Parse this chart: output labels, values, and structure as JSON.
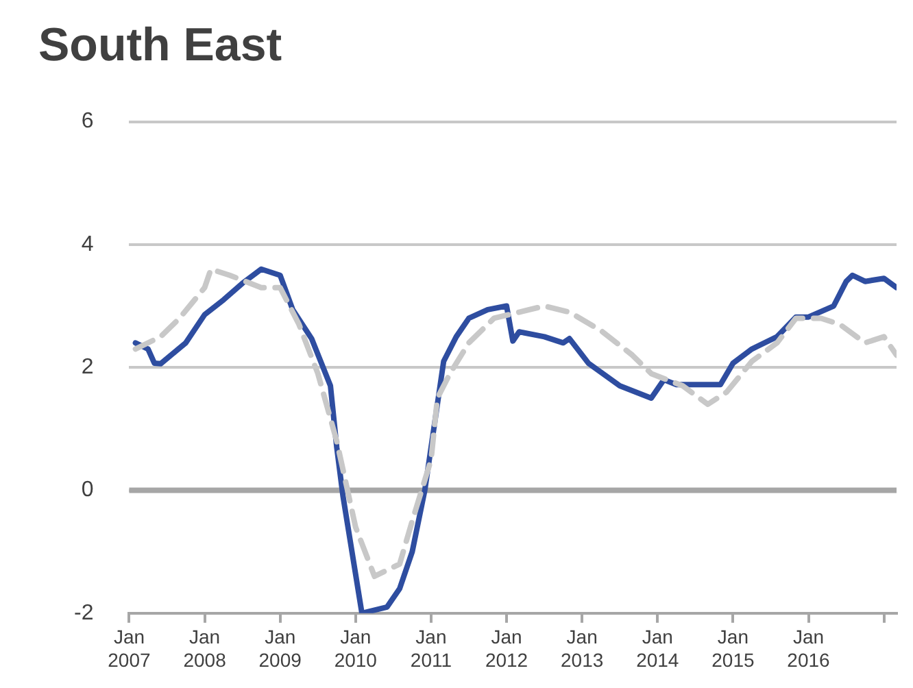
{
  "chart_data": {
    "type": "line",
    "title": "South East",
    "xlim": [
      "2007-01",
      "2017-03"
    ],
    "xticks": [
      {
        "value": "2007-01",
        "label": "Jan 2007"
      },
      {
        "value": "2008-01",
        "label": "Jan 2008"
      },
      {
        "value": "2009-01",
        "label": "Jan 2009"
      },
      {
        "value": "2010-01",
        "label": "Jan 2010"
      },
      {
        "value": "2011-01",
        "label": "Jan 2011"
      },
      {
        "value": "2012-01",
        "label": "Jan 2012"
      },
      {
        "value": "2013-01",
        "label": "Jan 2013"
      },
      {
        "value": "2014-01",
        "label": "Jan 2014"
      },
      {
        "value": "2015-01",
        "label": "Jan 2015"
      },
      {
        "value": "2016-01",
        "label": "Jan 2016"
      },
      {
        "value": "2017-01",
        "label": null
      }
    ],
    "ylim": [
      -2,
      6
    ],
    "yticks": [
      -2,
      0,
      2,
      4,
      6
    ],
    "grid": "y",
    "legend": false,
    "ref_lines": [
      {
        "axis": "y",
        "value": 0,
        "color": "#a6a6a6"
      }
    ],
    "series": [
      {
        "color": "#c8c8c8",
        "line_style": "dashed",
        "x": [
          "2007-02",
          "2007-06",
          "2007-09",
          "2008-01",
          "2008-02",
          "2008-05",
          "2008-10",
          "2009-01",
          "2009-04",
          "2009-07",
          "2009-10",
          "2010-01",
          "2010-04",
          "2010-08",
          "2010-10",
          "2011-01",
          "2011-02",
          "2011-04",
          "2011-07",
          "2011-11",
          "2012-03",
          "2012-07",
          "2012-11",
          "2013-04",
          "2013-09",
          "2013-12",
          "2014-05",
          "2014-09",
          "2014-12",
          "2015-04",
          "2015-08",
          "2015-11",
          "2016-03",
          "2016-06",
          "2016-10",
          "2017-01",
          "2017-03"
        ],
        "values": [
          2.3,
          2.5,
          2.8,
          3.3,
          3.6,
          3.5,
          3.3,
          3.3,
          2.7,
          1.9,
          0.8,
          -0.6,
          -1.4,
          -1.2,
          -0.5,
          0.5,
          1.5,
          1.9,
          2.4,
          2.8,
          2.9,
          3.0,
          2.9,
          2.6,
          2.2,
          1.9,
          1.7,
          1.4,
          1.6,
          2.1,
          2.4,
          2.8,
          2.8,
          2.7,
          2.4,
          2.5,
          2.2
        ]
      },
      {
        "color": "#2e4da0",
        "line_style": "solid",
        "x": [
          "2007-02",
          "2007-04",
          "2007-05",
          "2007-06",
          "2007-10",
          "2008-01",
          "2008-04",
          "2008-07",
          "2008-10",
          "2009-01",
          "2009-03",
          "2009-06",
          "2009-09",
          "2009-10",
          "2009-11",
          "2010-02",
          "2010-06",
          "2010-08",
          "2010-10",
          "2010-12",
          "2011-02",
          "2011-03",
          "2011-05",
          "2011-07",
          "2011-10",
          "2012-01",
          "2012-02",
          "2012-03",
          "2012-07",
          "2012-10",
          "2012-11",
          "2013-02",
          "2013-07",
          "2013-12",
          "2014-02",
          "2014-04",
          "2014-11",
          "2015-01",
          "2015-04",
          "2015-08",
          "2015-11",
          "2016-01",
          "2016-05",
          "2016-07",
          "2016-08",
          "2016-10",
          "2017-01",
          "2017-03"
        ],
        "values": [
          2.4,
          2.3,
          2.07,
          2.06,
          2.4,
          2.86,
          3.1,
          3.37,
          3.6,
          3.5,
          2.94,
          2.47,
          1.7,
          0.7,
          -0.1,
          -2.0,
          -1.9,
          -1.6,
          -1.0,
          0.0,
          1.4,
          2.1,
          2.5,
          2.8,
          2.94,
          3.0,
          2.43,
          2.58,
          2.5,
          2.4,
          2.47,
          2.07,
          1.7,
          1.5,
          1.8,
          1.72,
          1.72,
          2.07,
          2.3,
          2.5,
          2.82,
          2.82,
          3.0,
          3.4,
          3.5,
          3.4,
          3.45,
          3.3
        ]
      }
    ]
  }
}
